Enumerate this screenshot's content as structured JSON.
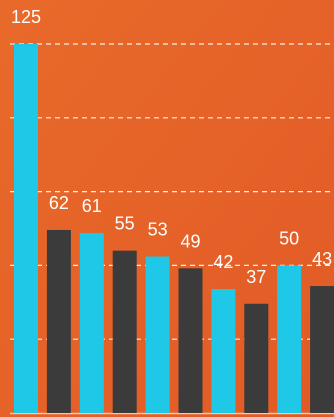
{
  "chart_data": {
    "type": "bar",
    "values": [
      125,
      62,
      61,
      55,
      53,
      49,
      42,
      37,
      50,
      43
    ],
    "colors": [
      "#1ec8e6",
      "#3b3b3b",
      "#1ec8e6",
      "#3b3b3b",
      "#1ec8e6",
      "#3b3b3b",
      "#1ec8e6",
      "#3b3b3b",
      "#1ec8e6",
      "#3b3b3b"
    ],
    "ylim": [
      0,
      125
    ],
    "yticks": [
      25,
      50,
      75,
      100,
      125
    ],
    "grid": true
  }
}
